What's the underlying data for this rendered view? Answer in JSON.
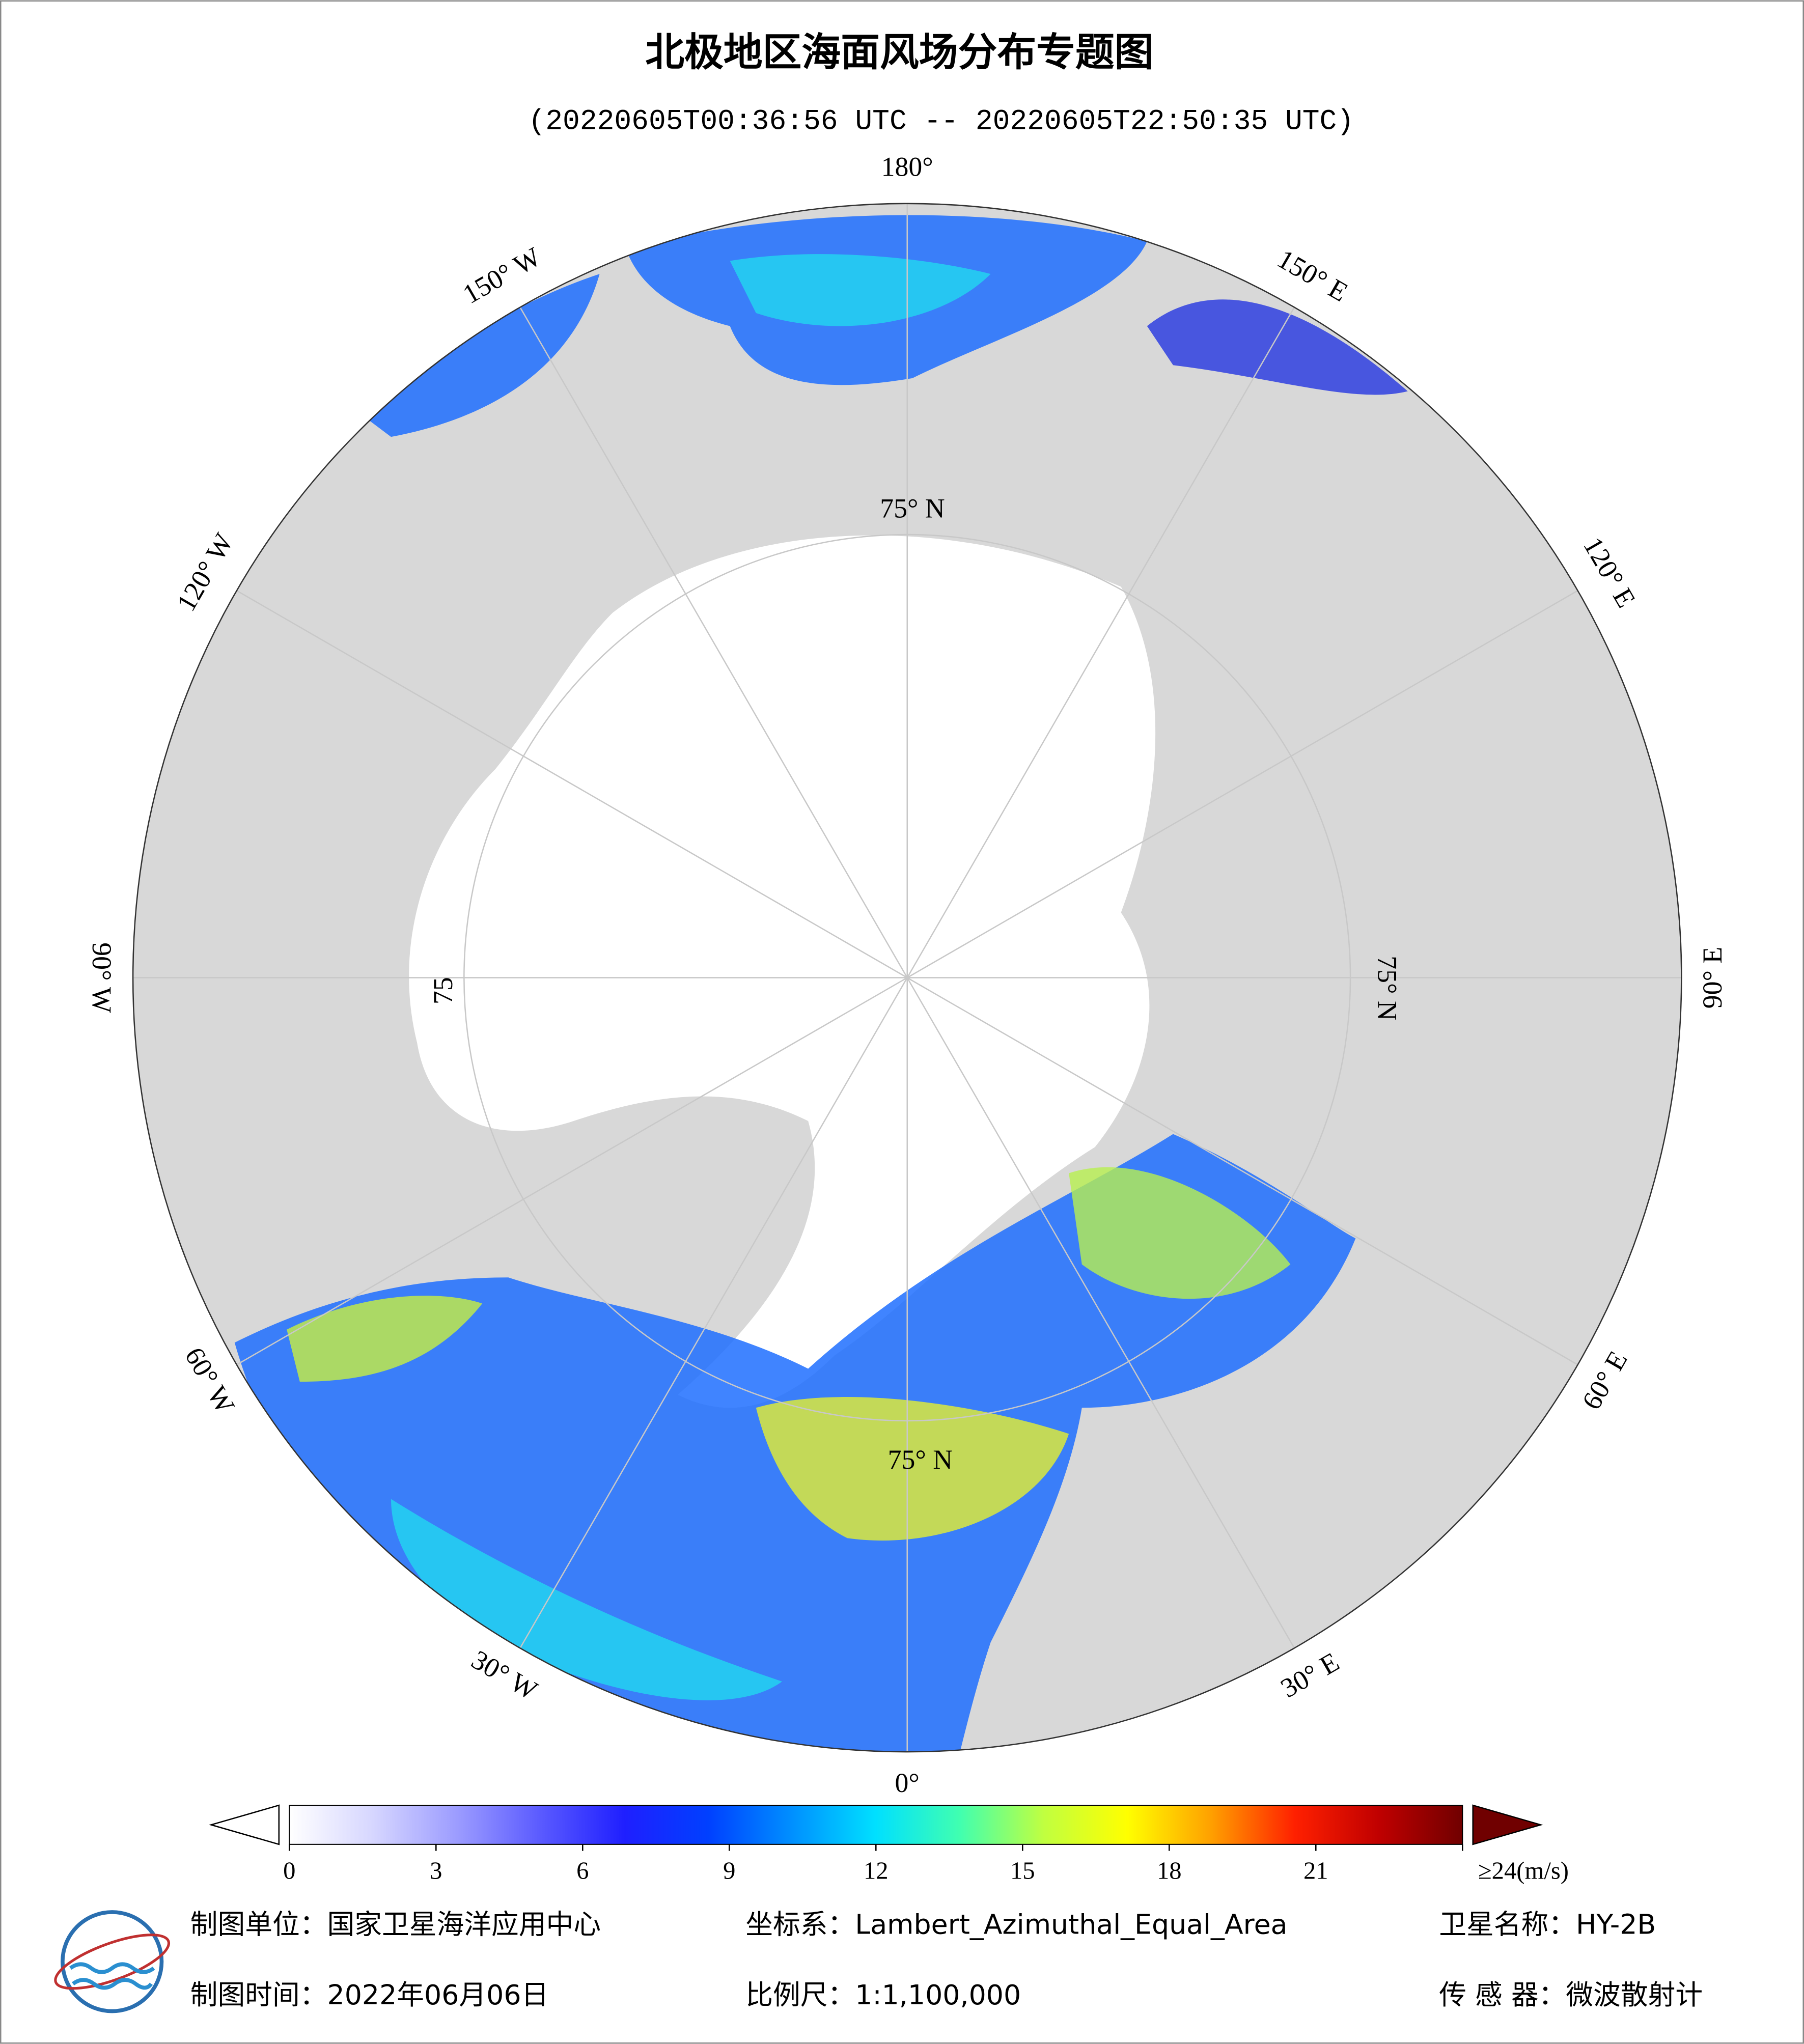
{
  "header": {
    "title": "北极地区海面风场分布专题图",
    "subtitle": "(20220605T00:36:56 UTC -- 20220605T22:50:35 UTC)"
  },
  "map": {
    "longitude_labels": [
      {
        "lon": 180,
        "label": "180°"
      },
      {
        "lon": 150,
        "label": "150° E"
      },
      {
        "lon": 120,
        "label": "120° E"
      },
      {
        "lon": 90,
        "label": "90° E"
      },
      {
        "lon": 60,
        "label": "60° E"
      },
      {
        "lon": 30,
        "label": "30° E"
      },
      {
        "lon": 0,
        "label": "0°"
      },
      {
        "lon": -30,
        "label": "30° W"
      },
      {
        "lon": -60,
        "label": "60° W"
      },
      {
        "lon": -90,
        "label": "90° W"
      },
      {
        "lon": -120,
        "label": "120° W"
      },
      {
        "lon": -150,
        "label": "150° W"
      }
    ],
    "latitude_labels": [
      "75° N",
      "75° N",
      "75° N",
      "75"
    ]
  },
  "colorbar": {
    "range": [
      0,
      24
    ],
    "ticks": [
      0,
      3,
      6,
      9,
      12,
      15,
      18,
      21,
      {
        "value": 24,
        "label": "≥24(m/s)"
      }
    ],
    "colors": [
      "#ffffff",
      "#d6d6ff",
      "#9c9cff",
      "#5a5aff",
      "#1f1fff",
      "#0040ff",
      "#0090ff",
      "#00e0ff",
      "#40ffb0",
      "#c0ff40",
      "#ffff00",
      "#ffa000",
      "#ff2000",
      "#c00000",
      "#700000"
    ]
  },
  "footer": {
    "unit": "制图单位：国家卫星海洋应用中心",
    "crs": "坐标系：Lambert_Azimuthal_Equal_Area",
    "satellite": "卫星名称：HY-2B",
    "date": "制图时间：2022年06月06日",
    "scale": "比例尺：1:1,100,000",
    "sensor": "传 感 器：微波散射计"
  }
}
